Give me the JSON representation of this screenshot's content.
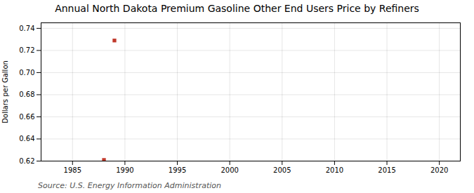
{
  "chart_data": {
    "type": "scatter",
    "title": "Annual North Dakota Premium Gasoline Other End Users Price by Refiners",
    "ylabel": "Dollars per Gallon",
    "source": "Source: U.S. Energy Information Administration",
    "x": [
      1988,
      1989
    ],
    "values": [
      0.621,
      0.729
    ],
    "color": "#c0392b",
    "marker": "square",
    "xlim": [
      1982,
      2022
    ],
    "xticks": [
      1985,
      1990,
      1995,
      2000,
      2005,
      2010,
      2015,
      2020
    ],
    "ylim": [
      0.62,
      0.745
    ],
    "yticks": [
      0.62,
      0.64,
      0.66,
      0.68,
      {
        "value": 0.7,
        "label": "0.70"
      },
      0.72,
      0.74
    ],
    "grid": true
  }
}
